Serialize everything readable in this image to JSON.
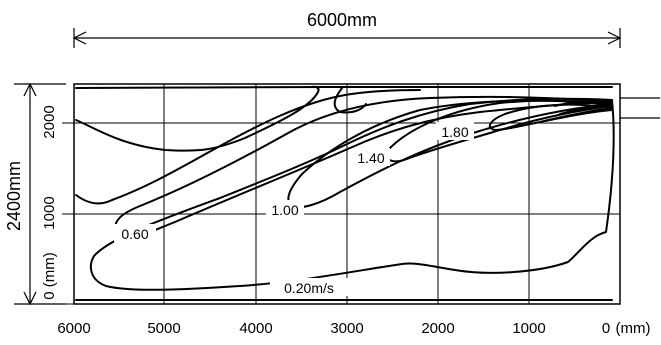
{
  "dimensions": {
    "width_label": "6000mm",
    "height_label": "2400mm"
  },
  "x_axis": {
    "ticks": [
      "6000",
      "5000",
      "4000",
      "3000",
      "2000",
      "1000",
      "0"
    ],
    "unit": "(mm)"
  },
  "y_axis": {
    "ticks": [
      "2000",
      "1000",
      "0"
    ],
    "unit": "(mm)"
  },
  "contours": {
    "c020": "0.20m/s",
    "c060": "0.60",
    "c100": "1.00",
    "c140": "1.40",
    "c180": "1.80"
  }
}
